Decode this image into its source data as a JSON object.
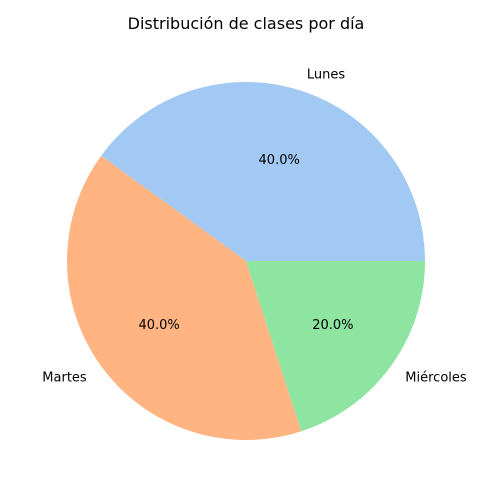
{
  "chart_data": {
    "type": "pie",
    "title": "Distribución de clases por día",
    "slices": [
      {
        "label": "Lunes",
        "value": 40.0,
        "pct_label": "40.0%",
        "color": "#a1c9f4"
      },
      {
        "label": "Martes",
        "value": 40.0,
        "pct_label": "40.0%",
        "color": "#ffb482"
      },
      {
        "label": "Miércoles",
        "value": 20.0,
        "pct_label": "20.0%",
        "color": "#8de5a1"
      }
    ],
    "start_angle_deg": 0,
    "direction": "counterclockwise"
  }
}
